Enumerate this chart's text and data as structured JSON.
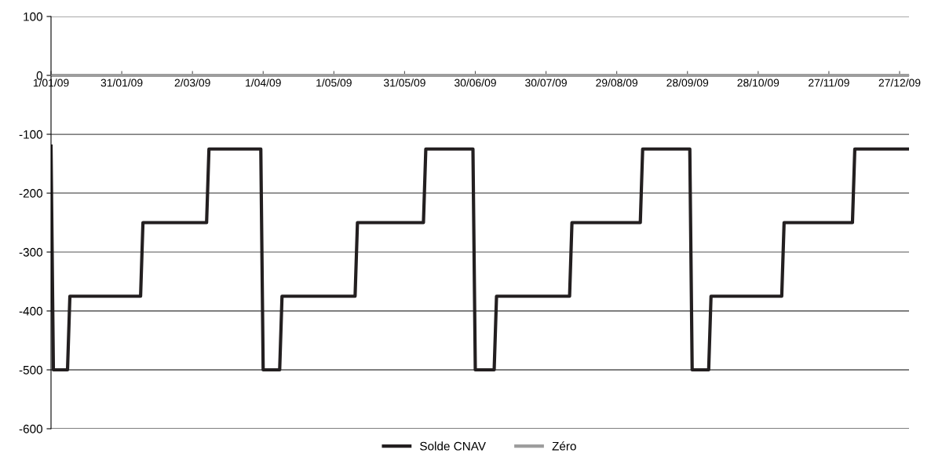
{
  "chart_data": {
    "type": "line",
    "xlim": [
      "2009-01-01",
      "2009-12-31"
    ],
    "xticks": [
      {
        "value": "2009-01-01",
        "label": "1/01/09"
      },
      {
        "value": "2009-01-31",
        "label": "31/01/09"
      },
      {
        "value": "2009-03-02",
        "label": "2/03/09"
      },
      {
        "value": "2009-04-01",
        "label": "1/04/09"
      },
      {
        "value": "2009-05-01",
        "label": "1/05/09"
      },
      {
        "value": "2009-05-31",
        "label": "31/05/09"
      },
      {
        "value": "2009-06-30",
        "label": "30/06/09"
      },
      {
        "value": "2009-07-30",
        "label": "30/07/09"
      },
      {
        "value": "2009-08-29",
        "label": "29/08/09"
      },
      {
        "value": "2009-09-28",
        "label": "28/09/09"
      },
      {
        "value": "2009-10-28",
        "label": "28/10/09"
      },
      {
        "value": "2009-11-27",
        "label": "27/11/09"
      },
      {
        "value": "2009-12-27",
        "label": "27/12/09"
      }
    ],
    "ylim": [
      -600,
      100
    ],
    "yticks": [
      -600,
      -500,
      -400,
      -300,
      -200,
      -100,
      0,
      100
    ],
    "grid": "y",
    "legend": "bottom",
    "marker": "none",
    "line_style": "solid",
    "series": [
      {
        "name": "Solde CNAV",
        "color": "#231f20",
        "x": [
          "2009-01-01",
          "2009-01-02",
          "2009-01-08",
          "2009-01-09",
          "2009-02-08",
          "2009-02-09",
          "2009-03-08",
          "2009-03-09",
          "2009-03-31",
          "2009-04-01",
          "2009-04-08",
          "2009-04-09",
          "2009-05-10",
          "2009-05-11",
          "2009-06-08",
          "2009-06-09",
          "2009-06-29",
          "2009-06-30",
          "2009-07-08",
          "2009-07-09",
          "2009-08-09",
          "2009-08-10",
          "2009-09-08",
          "2009-09-09",
          "2009-09-29",
          "2009-09-30",
          "2009-10-07",
          "2009-10-08",
          "2009-11-07",
          "2009-11-08",
          "2009-12-07",
          "2009-12-08",
          "2009-12-31"
        ],
        "values": [
          -120,
          -500,
          -500,
          -375,
          -375,
          -250,
          -250,
          -125,
          -125,
          -500,
          -500,
          -375,
          -375,
          -250,
          -250,
          -125,
          -125,
          -500,
          -500,
          -375,
          -375,
          -250,
          -250,
          -125,
          -125,
          -500,
          -500,
          -375,
          -375,
          -250,
          -250,
          -125,
          -125
        ]
      },
      {
        "name": "Zéro",
        "color": "#9d9d9d",
        "x": [
          "2009-01-01",
          "2009-12-31"
        ],
        "values": [
          0,
          0
        ]
      }
    ]
  }
}
